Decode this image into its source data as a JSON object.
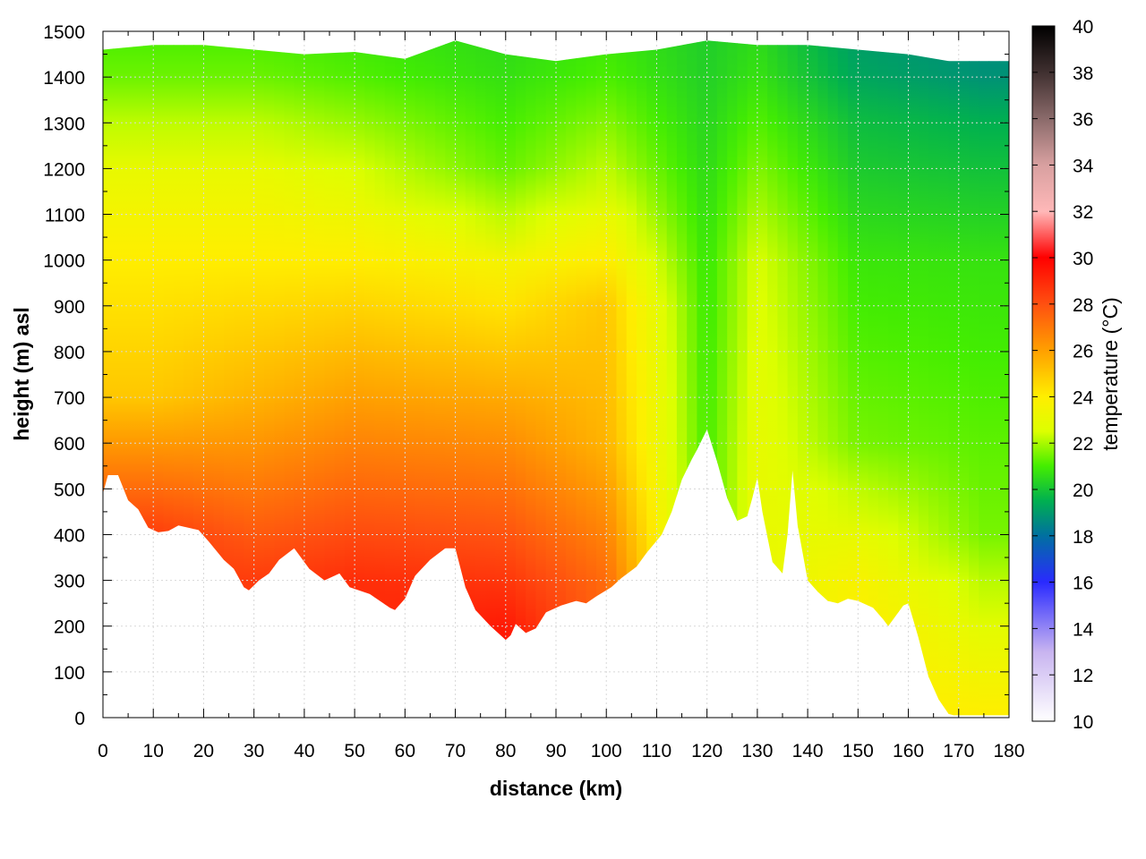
{
  "chart_data": {
    "type": "heatmap",
    "title": "",
    "xlabel": "distance (km)",
    "ylabel": "height (m) asl",
    "xlim": [
      0,
      180
    ],
    "ylim": [
      0,
      1500
    ],
    "x_ticks": [
      "0",
      "10",
      "20",
      "30",
      "40",
      "50",
      "60",
      "70",
      "80",
      "90",
      "100",
      "110",
      "120",
      "130",
      "140",
      "150",
      "160",
      "170",
      "180"
    ],
    "y_ticks": [
      "0",
      "100",
      "200",
      "300",
      "400",
      "500",
      "600",
      "700",
      "800",
      "900",
      "1000",
      "1100",
      "1200",
      "1300",
      "1400",
      "1500"
    ],
    "grid": true,
    "colorbar": {
      "label": "temperature (°C)",
      "range": [
        10,
        40
      ],
      "ticks": [
        "10",
        "12",
        "14",
        "16",
        "18",
        "20",
        "22",
        "24",
        "26",
        "28",
        "30",
        "32",
        "34",
        "36",
        "38",
        "40"
      ],
      "palette": [
        {
          "t": 10,
          "color": "#ffffff"
        },
        {
          "t": 13,
          "color": "#c8b4f0"
        },
        {
          "t": 16,
          "color": "#2a2aff"
        },
        {
          "t": 18,
          "color": "#0070a0"
        },
        {
          "t": 19.5,
          "color": "#00b050"
        },
        {
          "t": 21,
          "color": "#44ee00"
        },
        {
          "t": 22.5,
          "color": "#ddff00"
        },
        {
          "t": 24,
          "color": "#ffee00"
        },
        {
          "t": 26,
          "color": "#ffa000"
        },
        {
          "t": 28,
          "color": "#ff5010"
        },
        {
          "t": 30,
          "color": "#ff0000"
        },
        {
          "t": 32,
          "color": "#ffb8b8"
        },
        {
          "t": 34,
          "color": "#d8a0a0"
        },
        {
          "t": 36,
          "color": "#8a6a6a"
        },
        {
          "t": 38,
          "color": "#403030"
        },
        {
          "t": 40,
          "color": "#000000"
        }
      ]
    },
    "terrain_profile": [
      [
        0,
        490
      ],
      [
        1,
        530
      ],
      [
        3,
        530
      ],
      [
        5,
        475
      ],
      [
        7,
        455
      ],
      [
        9,
        415
      ],
      [
        11,
        405
      ],
      [
        13,
        408
      ],
      [
        15,
        420
      ],
      [
        19,
        410
      ],
      [
        21,
        385
      ],
      [
        24,
        345
      ],
      [
        26,
        325
      ],
      [
        28,
        285
      ],
      [
        29,
        278
      ],
      [
        31,
        300
      ],
      [
        33,
        315
      ],
      [
        35,
        345
      ],
      [
        38,
        370
      ],
      [
        41,
        325
      ],
      [
        44,
        300
      ],
      [
        47,
        315
      ],
      [
        49,
        285
      ],
      [
        53,
        270
      ],
      [
        57,
        240
      ],
      [
        58,
        235
      ],
      [
        60,
        260
      ],
      [
        62,
        310
      ],
      [
        65,
        345
      ],
      [
        68,
        370
      ],
      [
        70,
        370
      ],
      [
        72,
        285
      ],
      [
        74,
        235
      ],
      [
        77,
        200
      ],
      [
        80,
        170
      ],
      [
        81,
        180
      ],
      [
        82,
        205
      ],
      [
        84,
        185
      ],
      [
        86,
        195
      ],
      [
        88,
        230
      ],
      [
        91,
        245
      ],
      [
        94,
        255
      ],
      [
        96,
        250
      ],
      [
        98,
        265
      ],
      [
        101,
        285
      ],
      [
        103,
        305
      ],
      [
        106,
        330
      ],
      [
        108,
        360
      ],
      [
        111,
        400
      ],
      [
        113,
        450
      ],
      [
        115,
        520
      ],
      [
        117,
        565
      ],
      [
        118,
        585
      ],
      [
        120,
        630
      ],
      [
        122,
        560
      ],
      [
        124,
        480
      ],
      [
        126,
        430
      ],
      [
        128,
        440
      ],
      [
        129,
        480
      ],
      [
        130,
        525
      ],
      [
        131,
        450
      ],
      [
        133,
        340
      ],
      [
        135,
        315
      ],
      [
        136,
        400
      ],
      [
        137,
        540
      ],
      [
        138,
        420
      ],
      [
        140,
        300
      ],
      [
        142,
        275
      ],
      [
        144,
        255
      ],
      [
        146,
        250
      ],
      [
        148,
        260
      ],
      [
        150,
        255
      ],
      [
        153,
        240
      ],
      [
        155,
        215
      ],
      [
        156,
        200
      ],
      [
        157,
        215
      ],
      [
        159,
        245
      ],
      [
        160,
        250
      ],
      [
        162,
        175
      ],
      [
        164,
        90
      ],
      [
        166,
        40
      ],
      [
        168,
        8
      ],
      [
        169,
        5
      ],
      [
        180,
        5
      ]
    ],
    "top_of_data": [
      [
        0,
        1460
      ],
      [
        10,
        1470
      ],
      [
        20,
        1470
      ],
      [
        30,
        1460
      ],
      [
        40,
        1450
      ],
      [
        50,
        1455
      ],
      [
        60,
        1440
      ],
      [
        70,
        1480
      ],
      [
        80,
        1450
      ],
      [
        90,
        1435
      ],
      [
        100,
        1450
      ],
      [
        110,
        1460
      ],
      [
        120,
        1480
      ],
      [
        130,
        1470
      ],
      [
        140,
        1470
      ],
      [
        150,
        1460
      ],
      [
        160,
        1450
      ],
      [
        168,
        1435
      ],
      [
        180,
        1435
      ]
    ],
    "temperature_samples": [
      {
        "x": 10,
        "profile": [
          [
            400,
            28.5
          ],
          [
            700,
            25
          ],
          [
            1000,
            24
          ],
          [
            1200,
            23
          ],
          [
            1450,
            21
          ]
        ]
      },
      {
        "x": 30,
        "profile": [
          [
            300,
            28.5
          ],
          [
            700,
            25.5
          ],
          [
            1000,
            24
          ],
          [
            1200,
            23
          ],
          [
            1450,
            21
          ]
        ]
      },
      {
        "x": 50,
        "profile": [
          [
            280,
            29
          ],
          [
            700,
            26
          ],
          [
            1000,
            24
          ],
          [
            1200,
            22.5
          ],
          [
            1450,
            20.8
          ]
        ]
      },
      {
        "x": 80,
        "profile": [
          [
            180,
            29.5
          ],
          [
            600,
            26.5
          ],
          [
            1000,
            23.5
          ],
          [
            1150,
            21.5
          ],
          [
            1450,
            20.5
          ]
        ]
      },
      {
        "x": 100,
        "profile": [
          [
            270,
            27.5
          ],
          [
            600,
            25.5
          ],
          [
            900,
            25
          ],
          [
            1150,
            22.5
          ],
          [
            1450,
            20.8
          ]
        ]
      },
      {
        "x": 120,
        "profile": [
          [
            640,
            21
          ],
          [
            1000,
            20.8
          ],
          [
            1450,
            20.2
          ]
        ]
      },
      {
        "x": 130,
        "profile": [
          [
            520,
            23
          ],
          [
            1000,
            22.5
          ],
          [
            1450,
            20.5
          ]
        ]
      },
      {
        "x": 150,
        "profile": [
          [
            250,
            24
          ],
          [
            600,
            21.5
          ],
          [
            1000,
            20.8
          ],
          [
            1300,
            19.8
          ],
          [
            1450,
            19
          ]
        ]
      },
      {
        "x": 175,
        "profile": [
          [
            5,
            24
          ],
          [
            400,
            21.5
          ],
          [
            1000,
            20.7
          ],
          [
            1300,
            19.5
          ],
          [
            1430,
            18.6
          ]
        ]
      }
    ]
  }
}
